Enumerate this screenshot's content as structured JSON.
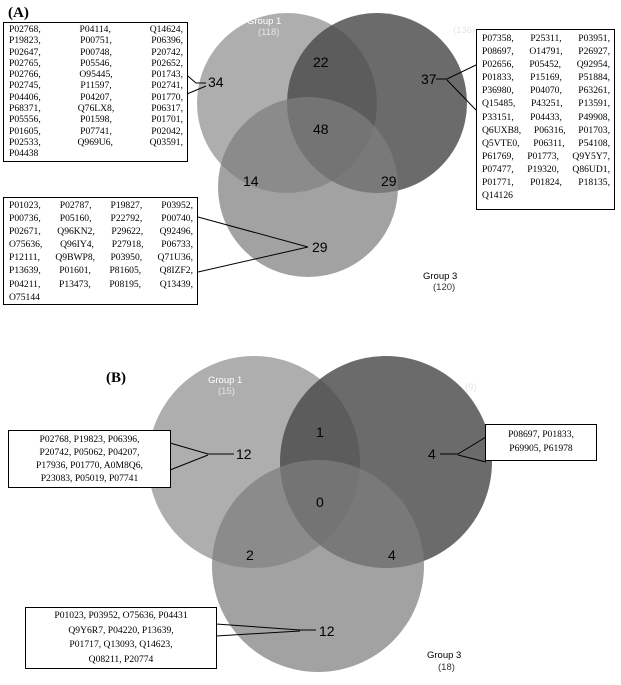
{
  "panels": [
    {
      "label": "(A)",
      "groups": [
        {
          "name": "Group 1",
          "count": "(118)",
          "color": "#a5a5a5"
        },
        {
          "name": "Group 2",
          "count": "(136)",
          "color": "#585858"
        },
        {
          "name": "Group 3",
          "count": "(120)",
          "color": "#7c7c7c"
        }
      ],
      "regions": {
        "only1": "34",
        "only2": "37",
        "only3": "29",
        "g12": "22",
        "g13": "14",
        "g23": "29",
        "g123": "48"
      },
      "lists": {
        "group1": [
          [
            "P02768,",
            "P04114,",
            "Q14624,"
          ],
          [
            "P19823,",
            "P00751,",
            "P06396,"
          ],
          [
            "P02647,",
            "P00748,",
            "P20742,"
          ],
          [
            "P02765,",
            "P05546,",
            "P02652,"
          ],
          [
            "P02766,",
            "O95445,",
            "P01743,"
          ],
          [
            "P02745,",
            "P11597,",
            "P02741,"
          ],
          [
            "P04406,",
            "P04207,",
            "P01770,"
          ],
          [
            "P68371,",
            "Q76LX8,",
            "P06317,"
          ],
          [
            "P05556,",
            "P01598,",
            "P01701,"
          ],
          [
            "P01605,",
            "P07741,",
            "P02042,"
          ],
          [
            "P02533,",
            "Q969U6,",
            "Q03591,"
          ],
          [
            "P04438"
          ]
        ],
        "group2": [
          [
            "P07358,",
            "P25311,",
            "P03951,"
          ],
          [
            "P08697,",
            "O14791,",
            "P26927,"
          ],
          [
            "P02656,",
            "P05452,",
            "Q92954,"
          ],
          [
            "P01833,",
            "P15169,",
            "P51884,"
          ],
          [
            "P36980,",
            "P04070,",
            "P63261,"
          ],
          [
            "Q15485,",
            "P43251,",
            "P13591,"
          ],
          [
            "P33151,",
            "P04433,",
            "P49908,"
          ],
          [
            "Q6UXB8,",
            "P06316,",
            "P01703,"
          ],
          [
            "Q5VTE0,",
            "P06311,",
            "P54108,"
          ],
          [
            "P61769,",
            "P01773,",
            "Q9Y5Y7,"
          ],
          [
            "P07477,",
            "P19320,",
            "Q86UD1,"
          ],
          [
            "P01771,",
            "P01824,",
            "P18135,"
          ],
          [
            "Q14126"
          ]
        ],
        "group3": [
          [
            "P01023,",
            "P02787,",
            "P19827,",
            "P03952,"
          ],
          [
            "P00736,",
            "P05160,",
            "P22792,",
            "P00740,"
          ],
          [
            "P02671,",
            "Q96KN2,",
            "P29622,",
            "Q92496,"
          ],
          [
            "O75636,",
            "Q96IY4,",
            "P27918,",
            "P06733,"
          ],
          [
            "P12111,",
            "Q9BWP8,",
            "P03950,",
            "Q71U36,"
          ],
          [
            "P13639,",
            "P01601,",
            "P81605,",
            "Q8IZF2,"
          ],
          [
            "P04211,",
            "P13473,",
            "P08195,",
            "Q13439,"
          ],
          [
            "O75144"
          ]
        ]
      }
    },
    {
      "label": "(B)",
      "groups": [
        {
          "name": "Group 1",
          "count": "(15)",
          "color": "#a5a5a5"
        },
        {
          "name": "Group 2",
          "count": "(9)",
          "color": "#585858"
        },
        {
          "name": "Group 3",
          "count": "(18)",
          "color": "#7c7c7c"
        }
      ],
      "regions": {
        "only1": "12",
        "only2": "4",
        "only3": "12",
        "g12": "1",
        "g13": "2",
        "g23": "4",
        "g123": "0"
      },
      "lists": {
        "group1": [
          "P02768, P19823, P06396,",
          "P20742, P05062, P04207,",
          "P17936, P01770, A0M8Q6,",
          "P23083, P05019, P07741"
        ],
        "group2": [
          "P08697, P01833,",
          "P69905, P61978"
        ],
        "group3": [
          "P01023, P03952, O75636, P04431",
          "Q9Y6R7, P04220, P13639,",
          "P01717, Q13093, Q14623,",
          "Q08211, P20774"
        ]
      }
    }
  ]
}
